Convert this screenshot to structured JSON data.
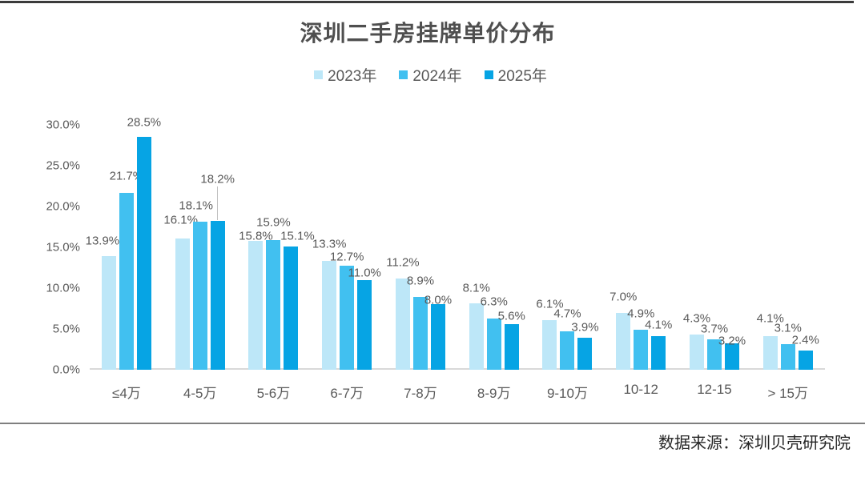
{
  "title": "深圳二手房挂牌单价分布",
  "source": "数据来源：深圳贝壳研究院",
  "colors": {
    "year2023": "#BDE7F8",
    "year2024": "#41C0F0",
    "year2025": "#06A4E4",
    "axis_line": "#D9D9D9",
    "text_gray": "#595959"
  },
  "chart_data": {
    "type": "bar",
    "title": "深圳二手房挂牌单价分布",
    "categories": [
      "≤4万",
      "4-5万",
      "5-6万",
      "6-7万",
      "7-8万",
      "8-9万",
      "9-10万",
      "10-12",
      "12-15",
      "> 15万"
    ],
    "series": [
      {
        "name": "2023年",
        "color": "#BDE7F8",
        "values": [
          13.9,
          16.1,
          15.8,
          13.3,
          11.2,
          8.1,
          6.1,
          7.0,
          4.3,
          4.1
        ]
      },
      {
        "name": "2024年",
        "color": "#41C0F0",
        "values": [
          21.7,
          18.1,
          15.9,
          12.7,
          8.9,
          6.3,
          4.7,
          4.9,
          3.7,
          3.1
        ]
      },
      {
        "name": "2025年",
        "color": "#06A4E4",
        "values": [
          28.5,
          18.2,
          15.1,
          11.0,
          8.0,
          5.6,
          3.9,
          4.1,
          3.2,
          2.4
        ]
      }
    ],
    "y_ticks": [
      "0.0%",
      "5.0%",
      "10.0%",
      "15.0%",
      "20.0%",
      "25.0%",
      "30.0%"
    ],
    "ylim": [
      0,
      30
    ],
    "xlabel": "",
    "ylabel": "",
    "value_suffix": "%",
    "grid": false,
    "legend_position": "top"
  }
}
